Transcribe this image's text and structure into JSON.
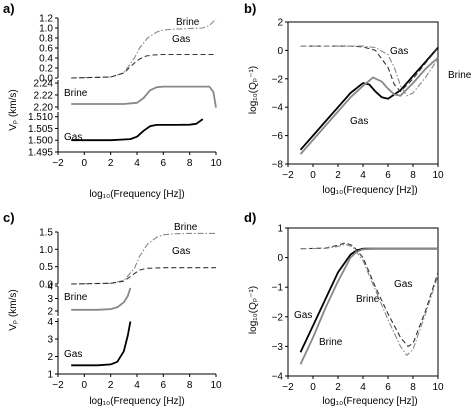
{
  "chart_data": [
    {
      "panel": "a)",
      "type": "line",
      "xlabel": "log10(Frequency [Hz])",
      "ylabel": "Vp (km/s)",
      "xlim": [
        -2,
        10
      ],
      "xticks": [
        -2,
        0,
        2,
        4,
        6,
        8,
        10
      ],
      "subplots": [
        {
          "ylim": [
            0,
            1.2
          ],
          "yticks": [
            0,
            0.2,
            0.4,
            0.6,
            0.8,
            1.0,
            1.2
          ],
          "series": [
            {
              "name": "Brine",
              "style": "dash-dot",
              "x": [
                -1,
                2,
                3,
                3.8,
                4.2,
                4.8,
                5.5,
                6,
                7,
                8,
                9,
                9.5,
                10
              ],
              "y": [
                0.0,
                0.02,
                0.1,
                0.4,
                0.6,
                0.8,
                0.92,
                0.96,
                0.98,
                0.99,
                1.0,
                1.05,
                1.18
              ]
            },
            {
              "name": "Gas",
              "style": "dashed",
              "x": [
                -1,
                2,
                3,
                3.8,
                4.2,
                4.7,
                5.2,
                6,
                7,
                8,
                9,
                10
              ],
              "y": [
                0.0,
                0.02,
                0.1,
                0.3,
                0.38,
                0.44,
                0.46,
                0.47,
                0.47,
                0.47,
                0.47,
                0.47
              ]
            }
          ],
          "annotations": [
            "Brine",
            "Gas"
          ]
        },
        {
          "ylim": [
            2.195,
            2.245
          ],
          "yticks": [
            2.2,
            2.22,
            2.24
          ],
          "series": [
            {
              "name": "Brine",
              "style": "solid-gray",
              "x": [
                -1,
                3,
                4,
                4.5,
                5,
                5.5,
                6,
                7,
                8,
                9,
                9.5,
                9.8,
                10
              ],
              "y": [
                2.205,
                2.205,
                2.207,
                2.215,
                2.228,
                2.233,
                2.234,
                2.234,
                2.234,
                2.234,
                2.234,
                2.225,
                2.199
              ]
            }
          ],
          "annotations": [
            "Brine"
          ]
        },
        {
          "ylim": [
            1.495,
            1.512
          ],
          "yticks": [
            1.495,
            1.5,
            1.505,
            1.51
          ],
          "series": [
            {
              "name": "Gas",
              "style": "solid-black",
              "x": [
                -1,
                2,
                3.5,
                4,
                4.5,
                5,
                5.5,
                6,
                7,
                8,
                8.5,
                9
              ],
              "y": [
                1.5,
                1.5,
                1.5005,
                1.5015,
                1.504,
                1.506,
                1.5065,
                1.5065,
                1.5065,
                1.5066,
                1.507,
                1.509
              ]
            }
          ],
          "annotations": [
            "Gas"
          ]
        }
      ]
    },
    {
      "panel": "b)",
      "type": "line",
      "xlabel": "log10(Frequency [Hz])",
      "ylabel": "log10(Qp^-1)",
      "xlim": [
        -2,
        10
      ],
      "ylim": [
        -8,
        2
      ],
      "xticks": [
        -2,
        0,
        2,
        4,
        6,
        8,
        10
      ],
      "yticks": [
        -8,
        -6,
        -4,
        -2,
        0,
        2
      ],
      "series": [
        {
          "name": "Gas (solid)",
          "style": "solid-black",
          "x": [
            -1,
            0,
            1,
            2,
            3,
            4,
            4.5,
            5,
            5.5,
            6,
            7,
            8,
            9,
            10
          ],
          "y": [
            -7.0,
            -6.0,
            -5.0,
            -4.0,
            -3.0,
            -2.3,
            -2.4,
            -2.9,
            -3.3,
            -3.4,
            -2.8,
            -1.8,
            -0.8,
            0.2
          ]
        },
        {
          "name": "Brine (solid)",
          "style": "solid-gray",
          "x": [
            -1,
            0,
            1,
            2,
            3,
            4,
            4.8,
            5.5,
            6,
            6.5,
            7,
            8,
            9,
            10
          ],
          "y": [
            -7.3,
            -6.3,
            -5.3,
            -4.3,
            -3.3,
            -2.5,
            -1.9,
            -2.2,
            -2.7,
            -3.1,
            -3.2,
            -2.3,
            -1.3,
            -0.5
          ]
        },
        {
          "name": "Gas (dashed)",
          "style": "dashed",
          "x": [
            -1,
            2,
            3,
            4,
            5,
            6,
            6.5,
            7,
            8,
            9,
            10
          ],
          "y": [
            0.3,
            0.3,
            0.3,
            0.25,
            0.0,
            -1.2,
            -2.4,
            -2.9,
            -2.0,
            -0.9,
            0.2
          ]
        },
        {
          "name": "Brine (dash-dot)",
          "style": "dash-dot",
          "x": [
            -1,
            2,
            3,
            4,
            5,
            6,
            6.5,
            7,
            7.5,
            8,
            9,
            10
          ],
          "y": [
            0.3,
            0.3,
            0.3,
            0.3,
            0.2,
            -0.3,
            -1.2,
            -2.5,
            -3.2,
            -3.0,
            -1.9,
            -0.6
          ]
        }
      ],
      "annotations": [
        "Gas",
        "Gas",
        "Brine"
      ]
    },
    {
      "panel": "c)",
      "type": "line",
      "xlabel": "log10(Frequency [Hz])",
      "ylabel": "Vp (km/s)",
      "xlim": [
        -2,
        10
      ],
      "xticks": [
        -2,
        0,
        2,
        4,
        6,
        8,
        10
      ],
      "subplots": [
        {
          "ylim": [
            0,
            1.5
          ],
          "yticks": [
            0,
            0.5,
            1.0,
            1.5
          ],
          "series": [
            {
              "name": "Brine",
              "style": "dash-dot",
              "x": [
                -1,
                2,
                3,
                3.8,
                4.2,
                4.8,
                5.5,
                6,
                7,
                8,
                9,
                10
              ],
              "y": [
                0.0,
                0.02,
                0.1,
                0.45,
                0.8,
                1.15,
                1.35,
                1.42,
                1.45,
                1.46,
                1.46,
                1.46
              ]
            },
            {
              "name": "Gas",
              "style": "dashed",
              "x": [
                -1,
                2,
                3,
                3.8,
                4.2,
                4.7,
                5.2,
                6,
                7,
                8,
                9,
                10
              ],
              "y": [
                0.0,
                0.02,
                0.08,
                0.3,
                0.4,
                0.45,
                0.46,
                0.47,
                0.47,
                0.47,
                0.47,
                0.47
              ]
            }
          ],
          "annotations": [
            "Brine",
            "Gas"
          ]
        },
        {
          "ylim": [
            1.6,
            4
          ],
          "yticks": [
            2,
            3,
            4
          ],
          "series": [
            {
              "name": "Brine",
              "style": "solid-gray",
              "x": [
                -1,
                1,
                2,
                2.5,
                3,
                3.3,
                3.5
              ],
              "y": [
                2.1,
                2.1,
                2.15,
                2.3,
                2.7,
                3.2,
                3.85
              ]
            }
          ],
          "annotations": [
            "Brine"
          ]
        },
        {
          "ylim": [
            1,
            4.2
          ],
          "yticks": [
            1,
            2,
            3,
            4
          ],
          "series": [
            {
              "name": "Gas",
              "style": "solid-black",
              "x": [
                -1,
                1,
                2,
                2.5,
                3,
                3.3,
                3.5
              ],
              "y": [
                1.5,
                1.5,
                1.55,
                1.7,
                2.3,
                3.2,
                4.0
              ]
            }
          ],
          "annotations": [
            "Gas"
          ]
        }
      ]
    },
    {
      "panel": "d)",
      "type": "line",
      "xlabel": "log10(Frequency [Hz])",
      "ylabel": "log10(Qp^-1)",
      "xlim": [
        -2,
        10
      ],
      "ylim": [
        -4,
        1
      ],
      "xticks": [
        -2,
        0,
        2,
        4,
        6,
        8,
        10
      ],
      "yticks": [
        -4,
        -3,
        -2,
        -1,
        0,
        1
      ],
      "series": [
        {
          "name": "Gas (solid)",
          "style": "solid-black",
          "x": [
            -1,
            0,
            1,
            2,
            3,
            3.5,
            4,
            5,
            6,
            7,
            8,
            9,
            10
          ],
          "y": [
            -3.2,
            -2.3,
            -1.4,
            -0.5,
            0.1,
            0.25,
            0.3,
            0.3,
            0.3,
            0.3,
            0.3,
            0.3,
            0.3
          ]
        },
        {
          "name": "Brine (solid)",
          "style": "solid-gray",
          "x": [
            -1,
            0,
            1,
            2,
            3,
            3.5,
            4,
            5,
            6,
            7,
            8,
            9,
            10
          ],
          "y": [
            -3.6,
            -2.7,
            -1.7,
            -0.8,
            0.0,
            0.2,
            0.28,
            0.3,
            0.3,
            0.3,
            0.3,
            0.3,
            0.3
          ]
        },
        {
          "name": "Gas (dashed)",
          "style": "dashed",
          "x": [
            -1,
            1,
            2,
            2.6,
            3.2,
            4,
            5,
            6,
            7,
            7.6,
            8,
            9,
            10
          ],
          "y": [
            0.3,
            0.32,
            0.42,
            0.5,
            0.4,
            0.0,
            -1.0,
            -1.9,
            -2.7,
            -3.0,
            -2.9,
            -1.8,
            -0.5
          ]
        },
        {
          "name": "Brine (dash-dot)",
          "style": "dash-dot",
          "x": [
            -1,
            1,
            2,
            2.6,
            3.2,
            4,
            5,
            6,
            7,
            7.5,
            8,
            9,
            10
          ],
          "y": [
            0.3,
            0.31,
            0.38,
            0.45,
            0.35,
            -0.1,
            -1.1,
            -2.1,
            -3.0,
            -3.3,
            -3.1,
            -1.9,
            -0.6
          ]
        }
      ],
      "annotations": [
        "Gas",
        "Brine",
        "Brine",
        "Gas"
      ]
    }
  ],
  "panel_labels": [
    "a)",
    "b)",
    "c)",
    "d)"
  ],
  "xlabel_text": "log₁₀(Frequency [Hz])",
  "ylabel_v": "Vₚ (km/s)",
  "ylabel_q": "log₁₀(Qₚ⁻¹)"
}
